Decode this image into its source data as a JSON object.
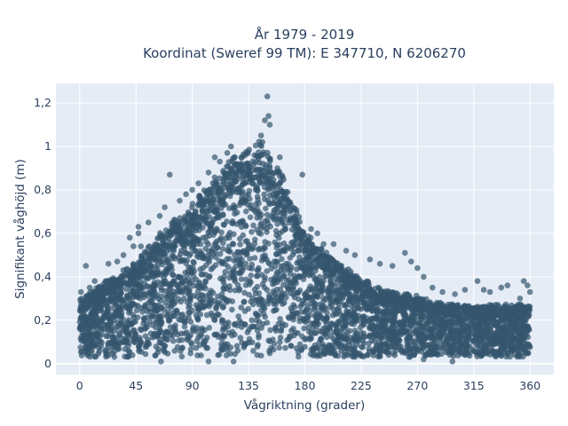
{
  "chart_data": {
    "type": "scatter",
    "title_line1": "År 1979 - 2019",
    "title_line2": "Koordinat (Sweref 99 TM): E 347710, N 6206270",
    "xlabel": "Vågriktning (grader)",
    "ylabel": "Signifikant våghöjd (m)",
    "xlim": [
      -19,
      379
    ],
    "ylim": [
      -0.05,
      1.29
    ],
    "xticks": [
      0,
      45,
      90,
      135,
      180,
      225,
      270,
      315,
      360
    ],
    "xtick_labels": [
      "0",
      "45",
      "90",
      "135",
      "180",
      "225",
      "270",
      "315",
      "360"
    ],
    "yticks": [
      0,
      0.2,
      0.4,
      0.6,
      0.8,
      1.0,
      1.2
    ],
    "ytick_labels": [
      "0",
      "0,2",
      "0,4",
      "0,6",
      "0,8",
      "1",
      "1,2"
    ],
    "grid": true,
    "plot_bg": "#e5ecf6",
    "marker_color": "#34566e",
    "marker_opacity": 0.7,
    "envelope": {
      "x": [
        0,
        15,
        30,
        45,
        60,
        75,
        90,
        105,
        120,
        135,
        145,
        150,
        160,
        170,
        180,
        195,
        210,
        225,
        240,
        255,
        270,
        285,
        300,
        315,
        330,
        345,
        360
      ],
      "y_max": [
        0.28,
        0.34,
        0.4,
        0.45,
        0.55,
        0.63,
        0.7,
        0.8,
        0.9,
        0.95,
        0.98,
        0.93,
        0.85,
        0.72,
        0.58,
        0.5,
        0.43,
        0.38,
        0.33,
        0.31,
        0.3,
        0.27,
        0.26,
        0.25,
        0.26,
        0.26,
        0.26
      ]
    },
    "outliers": [
      {
        "x": 150,
        "y": 1.23
      },
      {
        "x": 151,
        "y": 1.14
      },
      {
        "x": 148,
        "y": 1.12
      },
      {
        "x": 152,
        "y": 1.1
      },
      {
        "x": 145,
        "y": 1.05
      },
      {
        "x": 146,
        "y": 1.02
      },
      {
        "x": 121,
        "y": 1.0
      },
      {
        "x": 118,
        "y": 0.97
      },
      {
        "x": 108,
        "y": 0.95
      },
      {
        "x": 112,
        "y": 0.93
      },
      {
        "x": 124,
        "y": 0.92
      },
      {
        "x": 158,
        "y": 0.9
      },
      {
        "x": 72,
        "y": 0.87
      },
      {
        "x": 103,
        "y": 0.88
      },
      {
        "x": 178,
        "y": 0.87
      },
      {
        "x": 160,
        "y": 0.95
      },
      {
        "x": 95,
        "y": 0.83
      },
      {
        "x": 90,
        "y": 0.8
      },
      {
        "x": 85,
        "y": 0.78
      },
      {
        "x": 80,
        "y": 0.75
      },
      {
        "x": 68,
        "y": 0.72
      },
      {
        "x": 64,
        "y": 0.68
      },
      {
        "x": 55,
        "y": 0.65
      },
      {
        "x": 47,
        "y": 0.63
      },
      {
        "x": 47,
        "y": 0.6
      },
      {
        "x": 40,
        "y": 0.58
      },
      {
        "x": 43,
        "y": 0.54
      },
      {
        "x": 49,
        "y": 0.54
      },
      {
        "x": 35,
        "y": 0.5
      },
      {
        "x": 30,
        "y": 0.47
      },
      {
        "x": 23,
        "y": 0.46
      },
      {
        "x": 5,
        "y": 0.45
      },
      {
        "x": 12,
        "y": 0.38
      },
      {
        "x": 1,
        "y": 0.33
      },
      {
        "x": 8,
        "y": 0.35
      },
      {
        "x": 185,
        "y": 0.62
      },
      {
        "x": 190,
        "y": 0.6
      },
      {
        "x": 195,
        "y": 0.55
      },
      {
        "x": 203,
        "y": 0.55
      },
      {
        "x": 213,
        "y": 0.52
      },
      {
        "x": 220,
        "y": 0.5
      },
      {
        "x": 232,
        "y": 0.48
      },
      {
        "x": 240,
        "y": 0.46
      },
      {
        "x": 250,
        "y": 0.45
      },
      {
        "x": 260,
        "y": 0.51
      },
      {
        "x": 265,
        "y": 0.47
      },
      {
        "x": 270,
        "y": 0.44
      },
      {
        "x": 275,
        "y": 0.4
      },
      {
        "x": 282,
        "y": 0.35
      },
      {
        "x": 290,
        "y": 0.33
      },
      {
        "x": 300,
        "y": 0.32
      },
      {
        "x": 308,
        "y": 0.34
      },
      {
        "x": 318,
        "y": 0.38
      },
      {
        "x": 323,
        "y": 0.34
      },
      {
        "x": 328,
        "y": 0.33
      },
      {
        "x": 337,
        "y": 0.35
      },
      {
        "x": 342,
        "y": 0.36
      },
      {
        "x": 355,
        "y": 0.38
      },
      {
        "x": 358,
        "y": 0.36
      },
      {
        "x": 360,
        "y": 0.33
      },
      {
        "x": 352,
        "y": 0.3
      },
      {
        "x": 275,
        "y": 0.02
      },
      {
        "x": 298,
        "y": 0.01
      },
      {
        "x": 65,
        "y": 0.01
      },
      {
        "x": 103,
        "y": 0.01
      },
      {
        "x": 123,
        "y": 0.01
      }
    ]
  }
}
